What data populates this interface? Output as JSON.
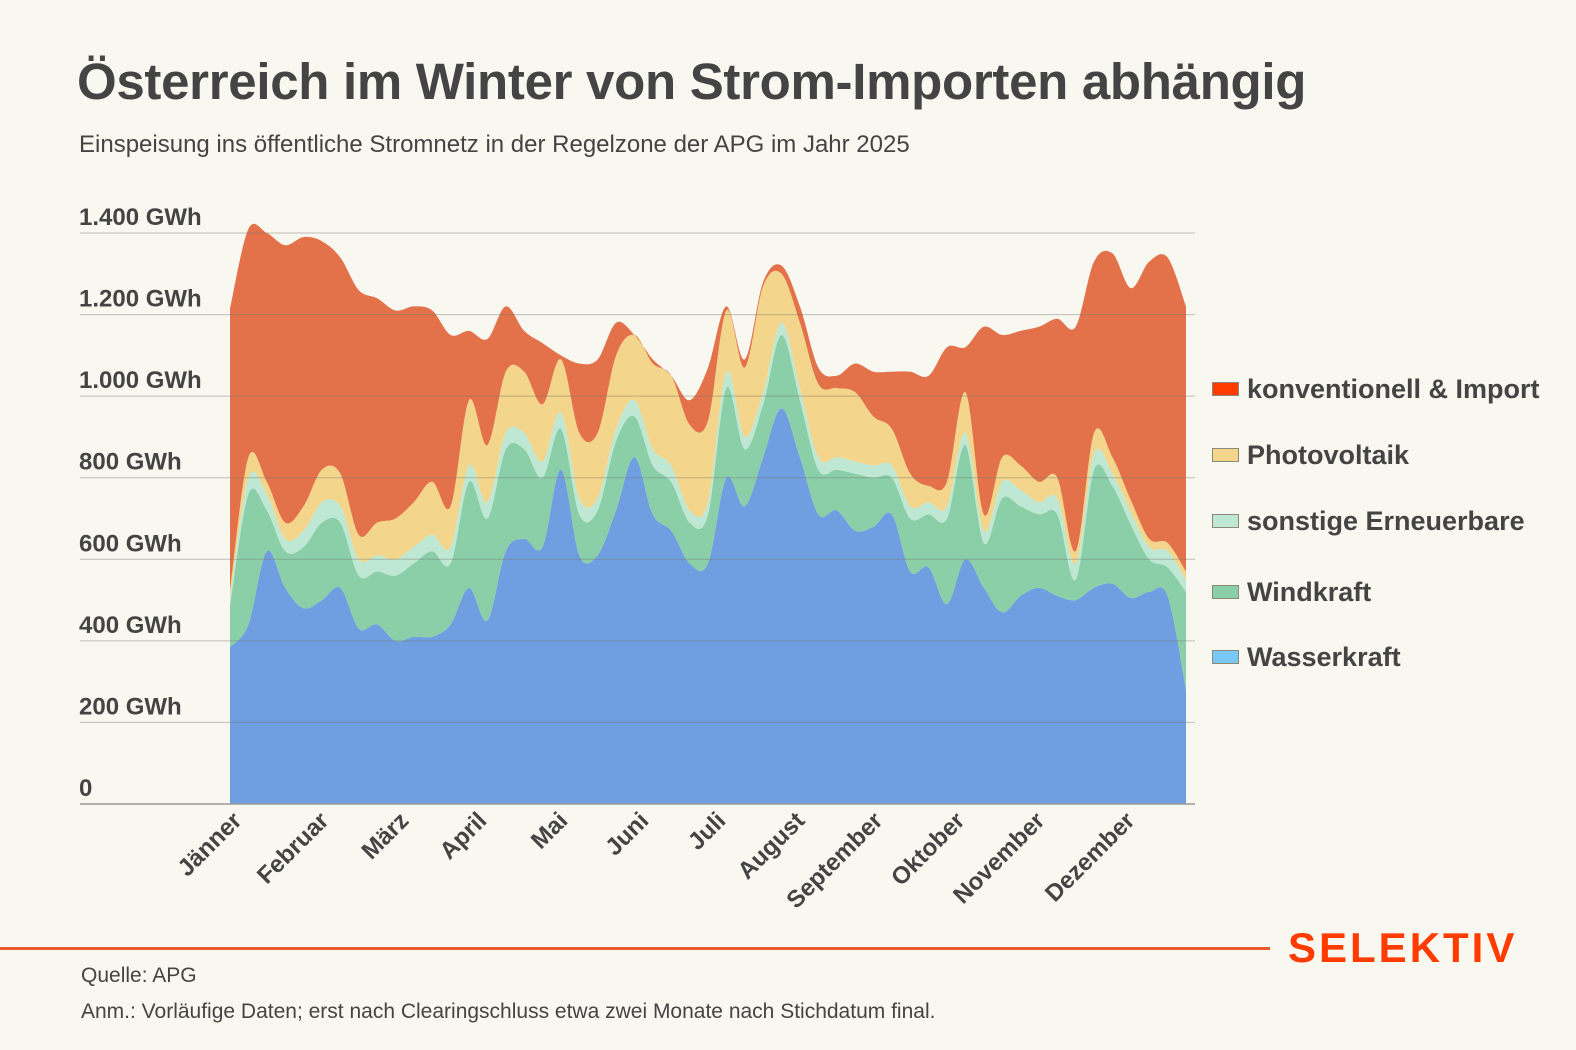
{
  "header": {
    "title": "Österreich im Winter von Strom-Importen abhängig",
    "subtitle": "Einspeisung ins öffentliche Stromnetz in der Regelzone der APG im Jahr 2025"
  },
  "footer": {
    "source": "Quelle: APG",
    "note": "Anm.: Vorläufige Daten; erst nach Clearingschluss etwa zwei Monate nach Stichdatum final.",
    "brand": "SELEKTIV",
    "brand_color": "#ff3c00",
    "rule_color": "#ec5b2f"
  },
  "legend": [
    {
      "label": "konventionell & Import",
      "swatch": "#ff3c00"
    },
    {
      "label": "Photovoltaik",
      "swatch": "#f3d68b"
    },
    {
      "label": "sonstige Erneuerbare",
      "swatch": "#bfe8d4"
    },
    {
      "label": "Windkraft",
      "swatch": "#8bcfa8"
    },
    {
      "label": "Wasserkraft",
      "swatch": "#7ac8f5"
    }
  ],
  "chart_data": {
    "type": "area",
    "stacked": true,
    "title": "Österreich im Winter von Strom-Importen abhängig",
    "subtitle": "Einspeisung ins öffentliche Stromnetz in der Regelzone der APG im Jahr 2025",
    "xlabel": "",
    "ylabel": "",
    "unit": "GWh",
    "x_granularity": "weekly (approx. 53 points over 2025)",
    "ylim": [
      0,
      1400
    ],
    "yticks": [
      0,
      200,
      400,
      600,
      800,
      1000,
      1200,
      1400
    ],
    "ytick_labels": [
      "0",
      "200 GWh",
      "400 GWh",
      "600 GWh",
      "800 GWh",
      "1.000 GWh",
      "1.200 GWh",
      "1.400 GWh"
    ],
    "month_labels": [
      "Jänner",
      "Februar",
      "März",
      "April",
      "Mai",
      "Juni",
      "Juli",
      "August",
      "September",
      "Oktober",
      "November",
      "Dezember"
    ],
    "grid": true,
    "legend_position": "right",
    "series": [
      {
        "name": "Wasserkraft",
        "color": "#6f9fe0",
        "values": [
          385,
          440,
          620,
          530,
          480,
          500,
          530,
          430,
          440,
          400,
          410,
          410,
          440,
          530,
          450,
          620,
          650,
          630,
          820,
          610,
          610,
          720,
          850,
          710,
          670,
          590,
          590,
          800,
          730,
          850,
          970,
          850,
          710,
          720,
          670,
          680,
          710,
          570,
          580,
          490,
          600,
          530,
          470,
          510,
          530,
          510,
          500,
          530,
          540,
          505,
          520,
          510,
          280
        ]
      },
      {
        "name": "Windkraft",
        "color": "#8bcfa8",
        "values": [
          100,
          320,
          100,
          90,
          150,
          190,
          160,
          130,
          130,
          160,
          180,
          210,
          150,
          260,
          250,
          250,
          220,
          170,
          100,
          100,
          110,
          170,
          100,
          120,
          120,
          100,
          120,
          220,
          140,
          130,
          180,
          140,
          110,
          100,
          140,
          120,
          90,
          130,
          130,
          210,
          280,
          110,
          280,
          220,
          180,
          200,
          50,
          290,
          240,
          180,
          80,
          70,
          240
        ]
      },
      {
        "name": "sonstige Erneuerbare",
        "color": "#bfe8d4",
        "values": [
          20,
          40,
          40,
          30,
          40,
          50,
          40,
          40,
          40,
          40,
          40,
          40,
          40,
          40,
          40,
          40,
          40,
          40,
          40,
          40,
          30,
          30,
          40,
          40,
          40,
          30,
          30,
          40,
          30,
          30,
          30,
          30,
          30,
          30,
          30,
          30,
          30,
          30,
          30,
          30,
          30,
          30,
          40,
          40,
          30,
          40,
          40,
          40,
          30,
          30,
          30,
          40,
          30
        ]
      },
      {
        "name": "Photovoltaik",
        "color": "#f3d68b",
        "values": [
          20,
          50,
          30,
          40,
          60,
          80,
          80,
          60,
          80,
          100,
          110,
          130,
          100,
          160,
          140,
          150,
          150,
          140,
          130,
          160,
          160,
          180,
          160,
          210,
          220,
          210,
          200,
          150,
          170,
          260,
          120,
          160,
          180,
          170,
          170,
          120,
          90,
          80,
          40,
          60,
          100,
          40,
          60,
          60,
          50,
          50,
          30,
          50,
          40,
          30,
          20,
          20,
          20
        ]
      },
      {
        "name": "konventionell & Import",
        "color": "#e3724a",
        "values": [
          690,
          560,
          610,
          680,
          660,
          560,
          530,
          600,
          550,
          510,
          480,
          420,
          420,
          170,
          260,
          160,
          100,
          150,
          10,
          170,
          180,
          80,
          0,
          10,
          0,
          60,
          130,
          10,
          20,
          10,
          20,
          40,
          40,
          30,
          70,
          110,
          140,
          250,
          270,
          330,
          110,
          460,
          300,
          330,
          380,
          390,
          550,
          420,
          500,
          520,
          680,
          700,
          650
        ]
      }
    ]
  }
}
